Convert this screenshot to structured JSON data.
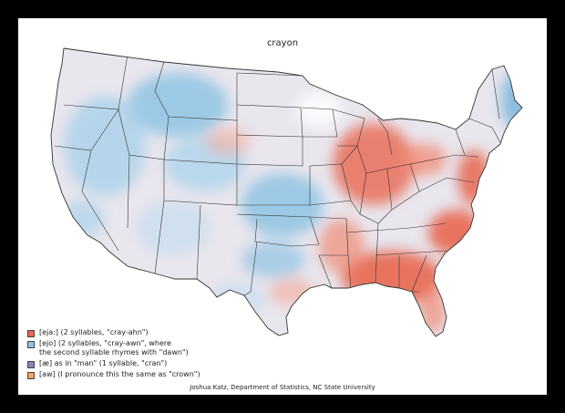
{
  "title": "crayon",
  "legend": [
    {
      "key": "eja",
      "color": "#e8664f",
      "label": "[eja:] (2 syllables, \"cray-ahn\")"
    },
    {
      "key": "ejo",
      "color": "#8ec3e3",
      "label": "[ejo] (2 syllables, \"cray-awn\", where\nthe second syllable rhymes with \"dawn\")"
    },
    {
      "key": "ae",
      "color": "#8a82b8",
      "label": "[æ] as in \"man\" (1 syllable, \"cran\")"
    },
    {
      "key": "aw",
      "color": "#f2a35e",
      "label": "[aw] (I pronounce this the same as \"crown\")"
    }
  ],
  "credit": "Joshua Katz, Department of Statistics, NC State University",
  "colors": {
    "background": "#000000",
    "canvas": "#ffffff",
    "eja": "#e8664f",
    "ejo": "#8ec3e3",
    "neutral": "#e9e6ee",
    "state_border": "#333333"
  }
}
